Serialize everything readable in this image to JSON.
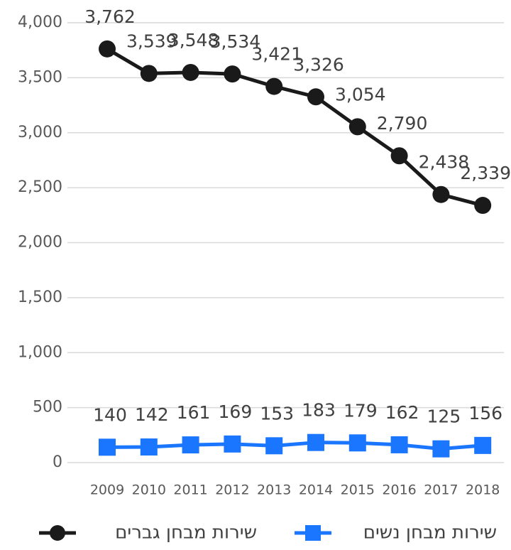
{
  "chart_data": {
    "type": "line",
    "categories": [
      "2009",
      "2010",
      "2011",
      "2012",
      "2013",
      "2014",
      "2015",
      "2016",
      "2017",
      "2018"
    ],
    "series": [
      {
        "name": "שירות מבחן גברים",
        "color": "#1a1a1a",
        "marker": "circle",
        "values": [
          3762,
          3539,
          3548,
          3534,
          3421,
          3326,
          3054,
          2790,
          2438,
          2339
        ],
        "value_labels": [
          "3,762",
          "3,539",
          "3,548",
          "3,534",
          "3,421",
          "3,326",
          "3,054",
          "2,790",
          "2,438",
          "2,339"
        ]
      },
      {
        "name": "שירות מבחן נשים",
        "color": "#1a75ff",
        "marker": "square",
        "values": [
          140,
          142,
          161,
          169,
          153,
          183,
          179,
          162,
          125,
          156
        ]
      }
    ],
    "ylim": [
      0,
      4000
    ],
    "yticks": [
      0,
      500,
      {
        "value": 1000,
        "label": "1,000"
      },
      {
        "value": 1500,
        "label": "1,500"
      },
      {
        "value": 2000,
        "label": "2,000"
      },
      {
        "value": 2500,
        "label": "2,500"
      },
      {
        "value": 3000,
        "label": "3,000"
      },
      {
        "value": 3500,
        "label": "3,500"
      },
      {
        "value": 4000,
        "label": "4,000"
      }
    ],
    "grid": true,
    "legend": "bottom"
  }
}
